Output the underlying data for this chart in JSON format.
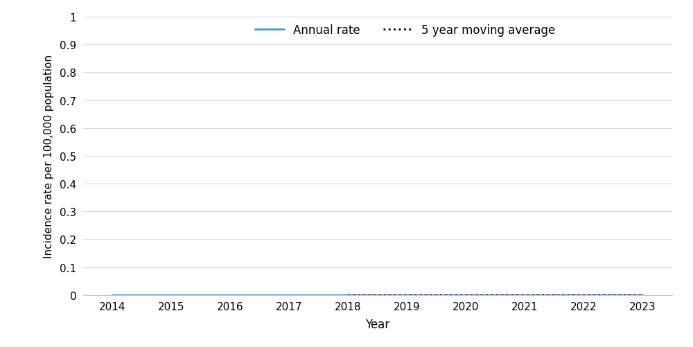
{
  "years": [
    2014,
    2015,
    2016,
    2017,
    2018,
    2019,
    2020,
    2021,
    2022,
    2023
  ],
  "annual_rate": [
    0.0,
    0.0,
    0.0,
    0.0,
    0.0,
    0.0,
    0.0,
    0.0,
    0.0,
    0.0
  ],
  "moving_avg": [
    null,
    null,
    null,
    null,
    0.0,
    0.0,
    0.0,
    0.0,
    0.0,
    0.0
  ],
  "annual_rate_color": "#5B9BD5",
  "moving_avg_color": "#000000",
  "xlabel": "Year",
  "ylabel": "Incidence rate per 100,000 population",
  "ylim": [
    0,
    1.0
  ],
  "ytick_values": [
    0,
    0.1,
    0.2,
    0.3,
    0.4,
    0.5,
    0.6,
    0.7,
    0.8,
    0.9,
    1.0
  ],
  "ytick_labels": [
    "0",
    "0.1",
    "0.2",
    "0.3",
    "0.4",
    "0.5",
    "0.6",
    "0.7",
    "0.8",
    "0.9",
    "1"
  ],
  "xlim": [
    2013.5,
    2023.5
  ],
  "legend_annual": "Annual rate",
  "legend_moving": "5 year moving average",
  "background_color": "#ffffff",
  "annual_linewidth": 2.2,
  "moving_linewidth": 2.0,
  "grid_color": "#d9d9d9",
  "spine_color": "#bfbfbf",
  "tick_fontsize": 11,
  "label_fontsize": 12,
  "legend_fontsize": 12
}
